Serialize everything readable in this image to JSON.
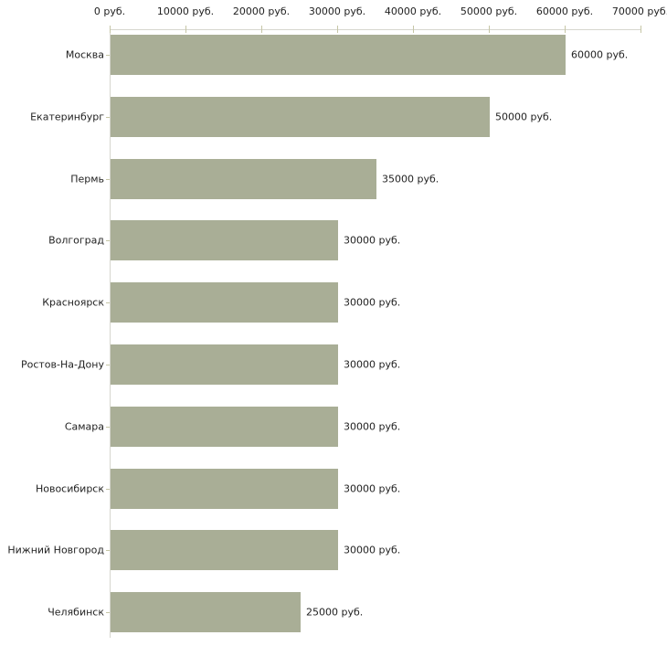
{
  "chart_data": {
    "type": "bar",
    "orientation": "horizontal",
    "title": "",
    "xlabel": "",
    "ylabel": "",
    "categories": [
      "Москва",
      "Екатеринбург",
      "Пермь",
      "Волгоград",
      "Красноярск",
      "Ростов-На-Дону",
      "Самара",
      "Новосибирск",
      "Нижний Новгород",
      "Челябинск"
    ],
    "values": [
      60000,
      50000,
      35000,
      30000,
      30000,
      30000,
      30000,
      30000,
      30000,
      25000
    ],
    "value_labels": [
      "60000 руб.",
      "50000 руб.",
      "35000 руб.",
      "30000 руб.",
      "30000 руб.",
      "30000 руб.",
      "30000 руб.",
      "30000 руб.",
      "30000 руб.",
      "25000 руб."
    ],
    "x_axis": {
      "position": "top",
      "min": 0,
      "max": 70000,
      "tick_values": [
        0,
        10000,
        20000,
        30000,
        40000,
        50000,
        60000,
        70000
      ],
      "tick_labels": [
        "0 руб.",
        "10000 руб.",
        "20000 руб.",
        "30000 руб.",
        "40000 руб.",
        "50000 руб.",
        "60000 руб.",
        "70000 руб."
      ]
    },
    "grid": false,
    "legend": false,
    "colors": {
      "bar": "#a9ae96",
      "axis_line": "#d6d6ce",
      "tick": "#c6c6a6",
      "text": "#222222",
      "background": "#ffffff"
    }
  }
}
